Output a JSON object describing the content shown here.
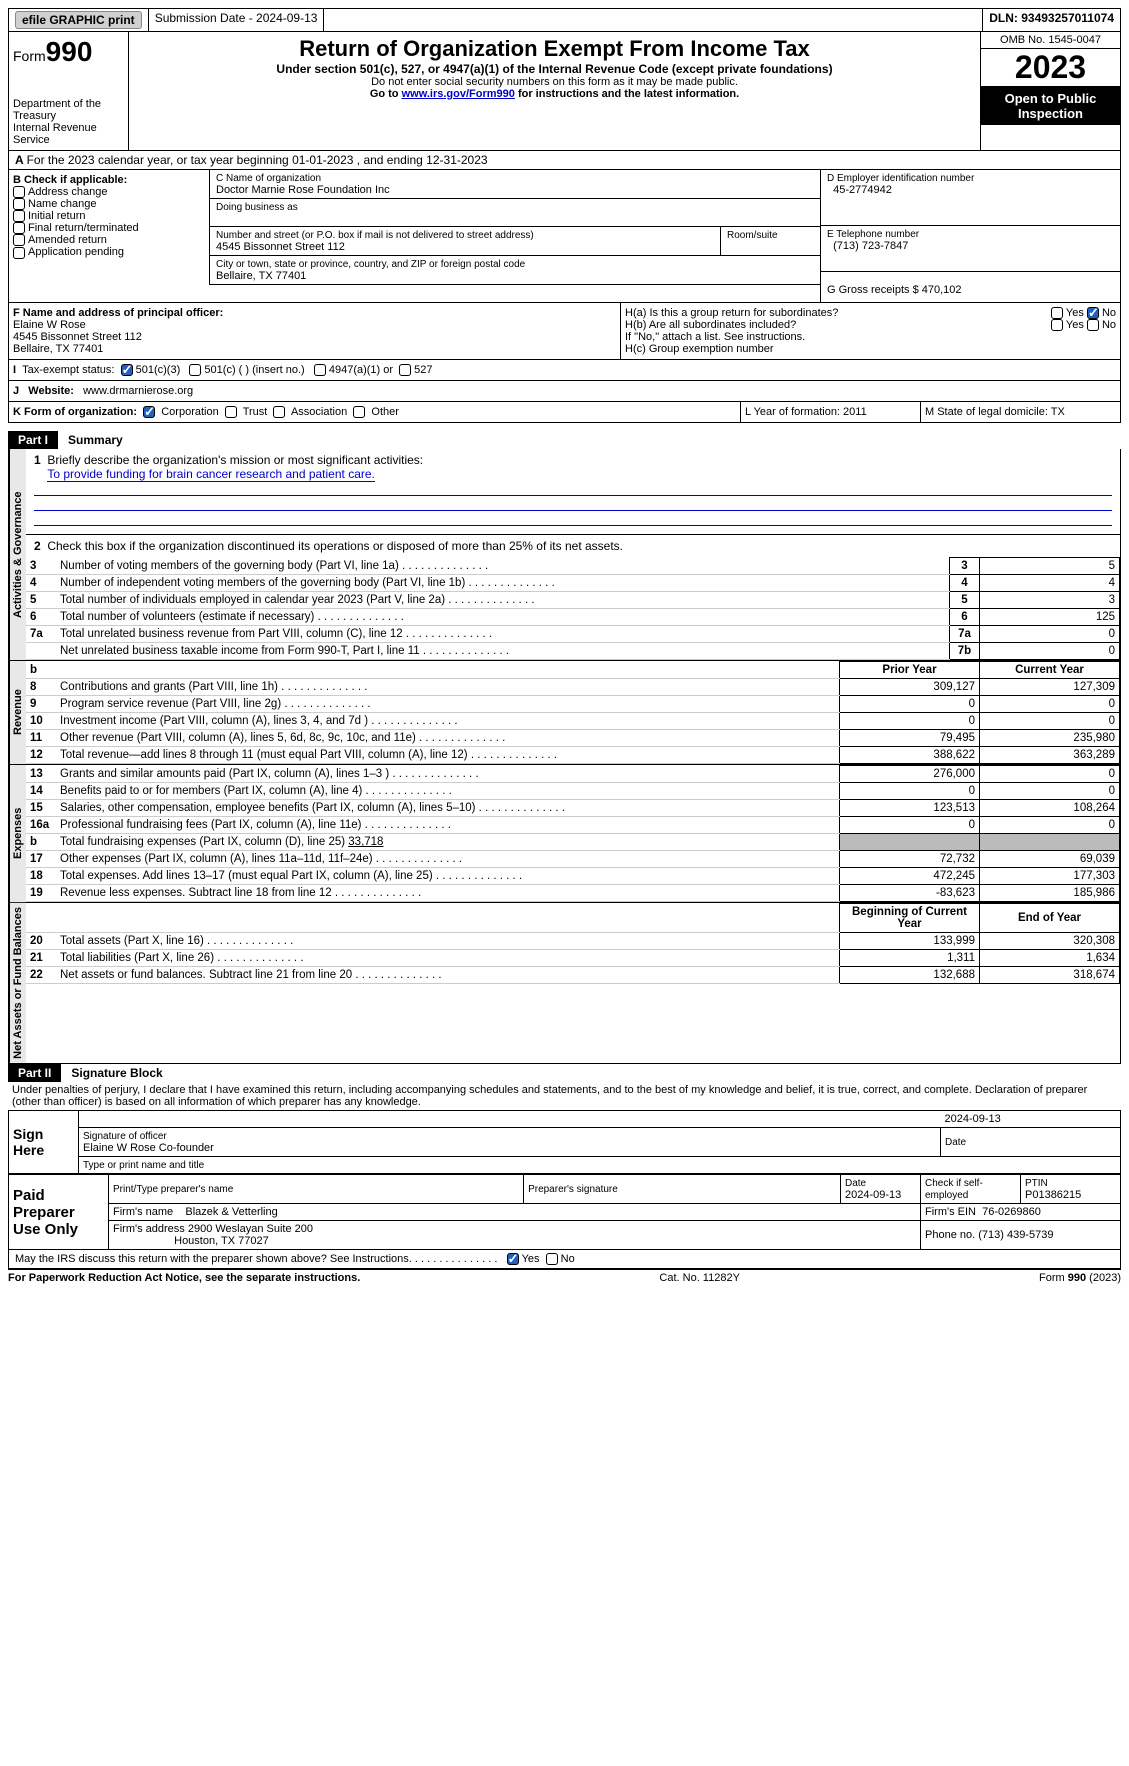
{
  "topbar": {
    "efile": "efile GRAPHIC print",
    "sub_label": "Submission Date - 2024-09-13",
    "dln": "DLN: 93493257011074"
  },
  "header": {
    "form_prefix": "Form",
    "form_no": "990",
    "title": "Return of Organization Exempt From Income Tax",
    "subtitle": "Under section 501(c), 527, or 4947(a)(1) of the Internal Revenue Code (except private foundations)",
    "note1": "Do not enter social security numbers on this form as it may be made public.",
    "note2_pre": "Go to ",
    "note2_link": "www.irs.gov/Form990",
    "note2_post": " for instructions and the latest information.",
    "dept": "Department of the Treasury\nInternal Revenue Service",
    "omb": "OMB No. 1545-0047",
    "year": "2023",
    "open": "Open to Public Inspection"
  },
  "a_line": "For the 2023 calendar year, or tax year beginning 01-01-2023     , and ending 12-31-2023",
  "box_b": {
    "hdr": "B Check if applicable:",
    "items": [
      "Address change",
      "Name change",
      "Initial return",
      "Final return/terminated",
      "Amended return",
      "Application pending"
    ]
  },
  "box_c": {
    "name_lbl": "C Name of organization",
    "name": "Doctor Marnie Rose Foundation Inc",
    "dba_lbl": "Doing business as",
    "addr_lbl": "Number and street (or P.O. box if mail is not delivered to street address)",
    "room_lbl": "Room/suite",
    "addr": "4545 Bissonnet Street 112",
    "city_lbl": "City or town, state or province, country, and ZIP or foreign postal code",
    "city": "Bellaire, TX   77401"
  },
  "box_d": {
    "lbl": "D Employer identification number",
    "val": "45-2774942"
  },
  "box_e": {
    "lbl": "E Telephone number",
    "val": "(713) 723-7847"
  },
  "box_g": {
    "lbl": "G Gross receipts $ ",
    "val": "470,102"
  },
  "box_f": {
    "lbl": "F  Name and address of principal officer:",
    "name": "Elaine W Rose",
    "addr1": "4545 Bissonnet Street 112",
    "addr2": "Bellaire, TX   77401"
  },
  "box_h": {
    "a": "H(a)  Is this a group return for subordinates?",
    "b": "H(b)  Are all subordinates included?",
    "b_note": "If \"No,\" attach a list. See instructions.",
    "c": "H(c)  Group exemption number"
  },
  "box_i": {
    "lbl": "Tax-exempt status:",
    "c3": "501(c)(3)",
    "c": "501(c) (   ) (insert no.)",
    "a": "4947(a)(1) or",
    "s": "527"
  },
  "box_j": {
    "lbl": "Website:",
    "val": "www.drmarnierose.org"
  },
  "box_k": {
    "lbl": "K Form of organization:",
    "corp": "Corporation",
    "trust": "Trust",
    "assoc": "Association",
    "other": "Other"
  },
  "box_l": {
    "lbl": "L Year of formation: ",
    "val": "2011"
  },
  "box_m": {
    "lbl": "M State of legal domicile: ",
    "val": "TX"
  },
  "part1": {
    "hdr": "Part I",
    "title": "Summary"
  },
  "summary": {
    "l1_lbl": "Briefly describe the organization's mission or most significant activities:",
    "l1_val": "To provide funding for brain cancer research and patient care.",
    "l2": "Check this box        if the organization discontinued its operations or disposed of more than 25% of its net assets.",
    "rows_gov": [
      {
        "n": "3",
        "t": "Number of voting members of the governing body (Part VI, line 1a)",
        "k": "3",
        "v": "5"
      },
      {
        "n": "4",
        "t": "Number of independent voting members of the governing body (Part VI, line 1b)",
        "k": "4",
        "v": "4"
      },
      {
        "n": "5",
        "t": "Total number of individuals employed in calendar year 2023 (Part V, line 2a)",
        "k": "5",
        "v": "3"
      },
      {
        "n": "6",
        "t": "Total number of volunteers (estimate if necessary)",
        "k": "6",
        "v": "125"
      },
      {
        "n": "7a",
        "t": "Total unrelated business revenue from Part VIII, column (C), line 12",
        "k": "7a",
        "v": "0"
      },
      {
        "n": "",
        "t": "Net unrelated business taxable income from Form 990-T, Part I, line 11",
        "k": "7b",
        "v": "0"
      }
    ],
    "hdr_prior": "Prior Year",
    "hdr_curr": "Current Year",
    "rows_rev": [
      {
        "n": "8",
        "t": "Contributions and grants (Part VIII, line 1h)",
        "p": "309,127",
        "c": "127,309"
      },
      {
        "n": "9",
        "t": "Program service revenue (Part VIII, line 2g)",
        "p": "0",
        "c": "0"
      },
      {
        "n": "10",
        "t": "Investment income (Part VIII, column (A), lines 3, 4, and 7d )",
        "p": "0",
        "c": "0"
      },
      {
        "n": "11",
        "t": "Other revenue (Part VIII, column (A), lines 5, 6d, 8c, 9c, 10c, and 11e)",
        "p": "79,495",
        "c": "235,980"
      },
      {
        "n": "12",
        "t": "Total revenue—add lines 8 through 11 (must equal Part VIII, column (A), line 12)",
        "p": "388,622",
        "c": "363,289"
      }
    ],
    "rows_exp": [
      {
        "n": "13",
        "t": "Grants and similar amounts paid (Part IX, column (A), lines 1–3 )",
        "p": "276,000",
        "c": "0"
      },
      {
        "n": "14",
        "t": "Benefits paid to or for members (Part IX, column (A), line 4)",
        "p": "0",
        "c": "0"
      },
      {
        "n": "15",
        "t": "Salaries, other compensation, employee benefits (Part IX, column (A), lines 5–10)",
        "p": "123,513",
        "c": "108,264"
      },
      {
        "n": "16a",
        "t": "Professional fundraising fees (Part IX, column (A), line 11e)",
        "p": "0",
        "c": "0"
      }
    ],
    "l16b_pre": "Total fundraising expenses (Part IX, column (D), line 25) ",
    "l16b_val": "33,718",
    "rows_exp2": [
      {
        "n": "17",
        "t": "Other expenses (Part IX, column (A), lines 11a–11d, 11f–24e)",
        "p": "72,732",
        "c": "69,039"
      },
      {
        "n": "18",
        "t": "Total expenses. Add lines 13–17 (must equal Part IX, column (A), line 25)",
        "p": "472,245",
        "c": "177,303"
      },
      {
        "n": "19",
        "t": "Revenue less expenses. Subtract line 18 from line 12",
        "p": "-83,623",
        "c": "185,986"
      }
    ],
    "hdr_beg": "Beginning of Current Year",
    "hdr_end": "End of Year",
    "rows_net": [
      {
        "n": "20",
        "t": "Total assets (Part X, line 16)",
        "p": "133,999",
        "c": "320,308"
      },
      {
        "n": "21",
        "t": "Total liabilities (Part X, line 26)",
        "p": "1,311",
        "c": "1,634"
      },
      {
        "n": "22",
        "t": "Net assets or fund balances. Subtract line 21 from line 20",
        "p": "132,688",
        "c": "318,674"
      }
    ]
  },
  "part2": {
    "hdr": "Part II",
    "title": "Signature Block",
    "decl": "Under penalties of perjury, I declare that I have examined this return, including accompanying schedules and statements, and to the best of my knowledge and belief, it is true, correct, and complete. Declaration of preparer (other than officer) is based on all information of which preparer has any knowledge."
  },
  "sign": {
    "here": "Sign Here",
    "sig_lbl": "Signature of officer",
    "date_lbl": "Date",
    "date": "2024-09-13",
    "name": "Elaine W Rose  Co-founder",
    "name_lbl": "Type or print name and title"
  },
  "paid": {
    "hdr": "Paid Preparer Use Only",
    "pname_lbl": "Print/Type preparer's name",
    "psig_lbl": "Preparer's signature",
    "pdate_lbl": "Date",
    "pdate": "2024-09-13",
    "pchk_lbl": "Check         if self-employed",
    "ptin_lbl": "PTIN",
    "ptin": "P01386215",
    "firm_lbl": "Firm's name",
    "firm": "Blazek & Vetterling",
    "fein_lbl": "Firm's EIN",
    "fein": "76-0269860",
    "faddr_lbl": "Firm's address",
    "faddr1": "2900 Weslayan Suite 200",
    "faddr2": "Houston, TX   77027",
    "phone_lbl": "Phone no.",
    "phone": "(713) 439-5739"
  },
  "discuss": "May the IRS discuss this return with the preparer shown above? See Instructions.",
  "footer": {
    "l": "For Paperwork Reduction Act Notice, see the separate instructions.",
    "m": "Cat. No. 11282Y",
    "r": "Form 990 (2023)"
  },
  "vtabs": {
    "gov": "Activities & Governance",
    "rev": "Revenue",
    "exp": "Expenses",
    "net": "Net Assets or Fund Balances"
  }
}
